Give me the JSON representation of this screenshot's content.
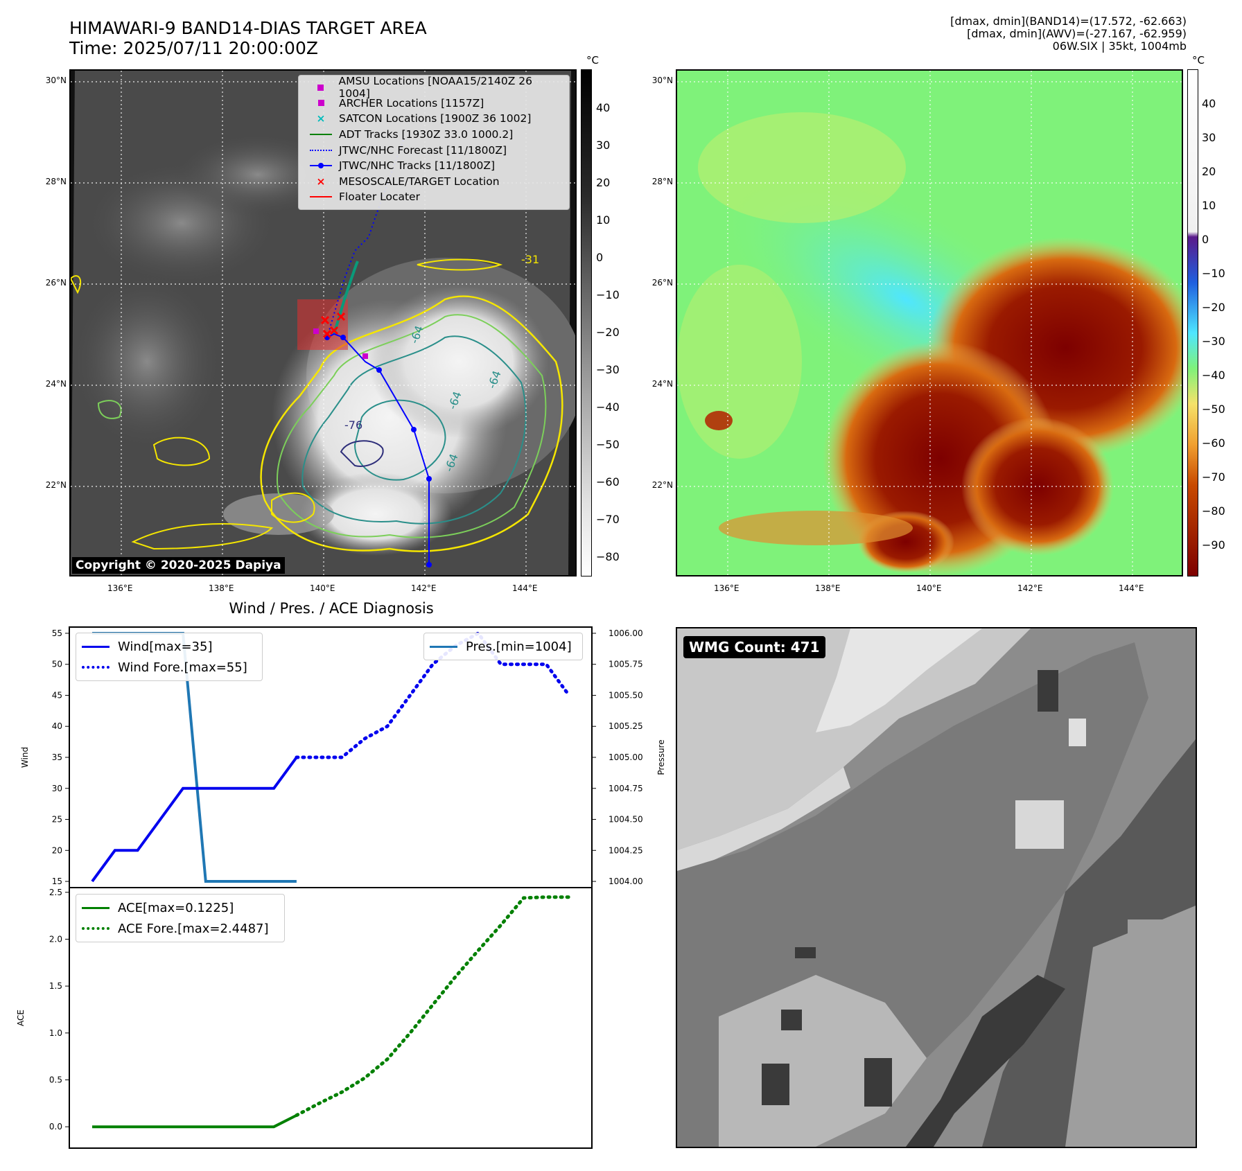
{
  "title": {
    "line1": "HIMAWARI-9 BAND14-DIAS TARGET AREA",
    "line2": "Time: 2025/07/11 20:00:00Z"
  },
  "info": {
    "line1": "[dmax, dmin](BAND14)=(17.572, -62.663)",
    "line2": "[dmax, dmin](AWV)=(-27.167, -62.959)",
    "line3": "06W.SIX | 35kt, 1004mb"
  },
  "map": {
    "lat_labels": [
      "30°N",
      "28°N",
      "26°N",
      "24°N",
      "22°N"
    ],
    "lon_labels": [
      "136°E",
      "138°E",
      "140°E",
      "142°E",
      "144°E"
    ],
    "copyright": "Copyright © 2020-2025 Dapiya",
    "contour_labels": [
      "-76",
      "-64",
      "-64",
      "-64",
      "-64",
      "-31"
    ],
    "colorbar_unit": "°C",
    "colorbar1_ticks": [
      "40",
      "30",
      "20",
      "10",
      "0",
      "−10",
      "−20",
      "−30",
      "−40",
      "−50",
      "−60",
      "−70",
      "−80"
    ],
    "colorbar2_ticks": [
      "40",
      "30",
      "20",
      "10",
      "0",
      "−10",
      "−20",
      "−30",
      "−40",
      "−50",
      "−60",
      "−70",
      "−80",
      "−90"
    ]
  },
  "legend": [
    {
      "label": "AMSU Locations [NOAA15/2140Z 26 1004]",
      "symbol": "square",
      "color": "#cc00cc"
    },
    {
      "label": "ARCHER Locations [1157Z]",
      "symbol": "square",
      "color": "#cc00cc"
    },
    {
      "label": "SATCON Locations [1900Z 36 1002]",
      "symbol": "x",
      "color": "#00bbbb"
    },
    {
      "label": "ADT Tracks [1930Z 33.0 1000.2]",
      "symbol": "line",
      "color": "#008000"
    },
    {
      "label": "JTWC/NHC Forecast [11/1800Z]",
      "symbol": "dotted",
      "color": "#0000ff"
    },
    {
      "label": "JTWC/NHC Tracks [11/1800Z]",
      "symbol": "line-dot",
      "color": "#0000ff"
    },
    {
      "label": "MESOSCALE/TARGET Location",
      "symbol": "x",
      "color": "#ff0000"
    },
    {
      "label": "Floater Locater",
      "symbol": "line",
      "color": "#ff0000"
    }
  ],
  "wmg": {
    "label": "WMG Count: 471"
  },
  "chart_data": [
    {
      "type": "line",
      "title": "Wind / Pres. / ACE Diagnosis",
      "ylabel": "Wind",
      "ylabel2": "Pressure",
      "ylim": [
        14,
        56
      ],
      "ylim2": [
        1003.95,
        1006.05
      ],
      "yticks": [
        15,
        20,
        25,
        30,
        35,
        40,
        45,
        50,
        55
      ],
      "yticks2": [
        "1004.00",
        "1004.25",
        "1004.50",
        "1004.75",
        "1005.00",
        "1005.25",
        "1005.50",
        "1005.75",
        "1006.00"
      ],
      "x_range": [
        0,
        21
      ],
      "series": [
        {
          "name": "Wind[max=35]",
          "axis": "left",
          "style": "solid",
          "color": "#0000ee",
          "x": [
            0,
            1,
            2,
            3,
            4,
            5,
            6,
            7,
            8,
            9
          ],
          "values": [
            15,
            20,
            20,
            25,
            30,
            30,
            30,
            30,
            30,
            35
          ]
        },
        {
          "name": "Wind Fore.[max=55]",
          "axis": "left",
          "style": "dotted",
          "color": "#0000ee",
          "x": [
            9,
            10,
            11,
            12,
            13,
            14,
            15,
            16,
            17,
            18,
            19,
            20
          ],
          "values": [
            35,
            35,
            35,
            38,
            40,
            45,
            50,
            53,
            55,
            50,
            50,
            50
          ]
        },
        {
          "name": "Pres.[min=1004]",
          "axis": "right",
          "style": "solid",
          "color": "#1f77b4",
          "x": [
            0,
            1,
            2,
            3,
            4,
            5,
            6,
            7,
            8,
            9
          ],
          "values": [
            1006.0,
            1006.0,
            1006.0,
            1006.0,
            1006.0,
            1004.0,
            1004.0,
            1004.0,
            1004.0,
            1004.0
          ]
        }
      ],
      "extra_point": {
        "x": 21,
        "value": 45
      }
    },
    {
      "type": "line",
      "ylabel": "ACE",
      "ylim": [
        -0.08,
        2.55
      ],
      "yticks": [
        "0.0",
        "0.5",
        "1.0",
        "1.5",
        "2.0",
        "2.5"
      ],
      "x_range": [
        0,
        21
      ],
      "series": [
        {
          "name": "ACE[max=0.1225]",
          "style": "solid",
          "color": "#008000",
          "x": [
            0,
            1,
            2,
            3,
            4,
            5,
            6,
            7,
            8,
            9
          ],
          "values": [
            0,
            0,
            0,
            0,
            0,
            0,
            0,
            0,
            0,
            0.1225
          ]
        },
        {
          "name": "ACE Fore.[max=2.4487]",
          "style": "dotted",
          "color": "#008000",
          "x": [
            9,
            10,
            11,
            12,
            13,
            14,
            15,
            16,
            17,
            18,
            19,
            20,
            21
          ],
          "values": [
            0.1225,
            0.25,
            0.37,
            0.52,
            0.72,
            1.0,
            1.3,
            1.6,
            1.88,
            2.15,
            2.44,
            2.4487,
            2.4487
          ]
        }
      ]
    }
  ]
}
